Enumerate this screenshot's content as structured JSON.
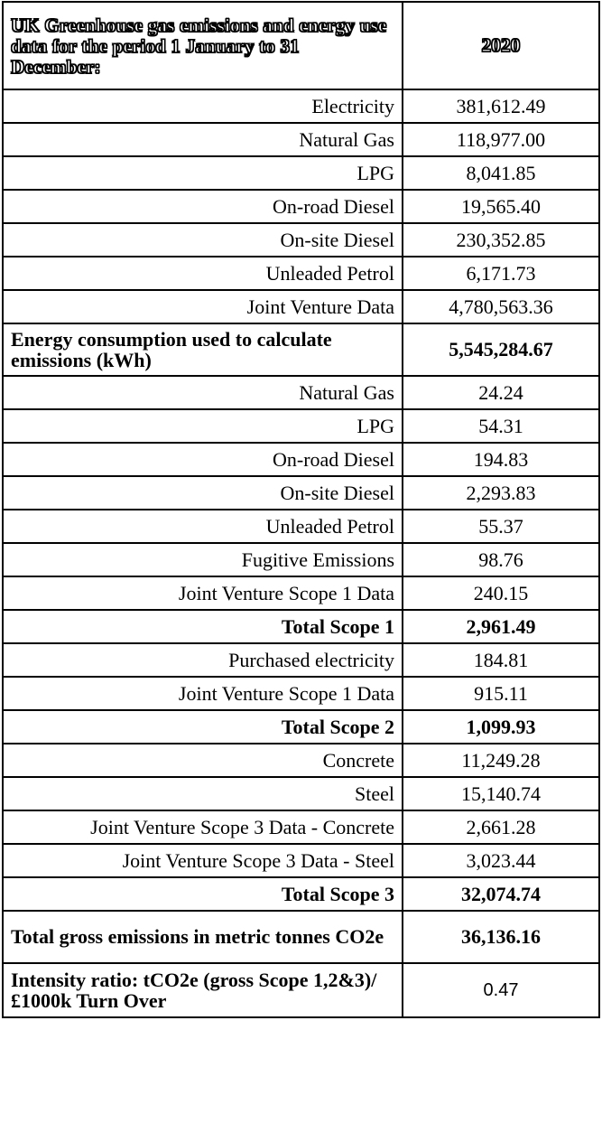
{
  "header": {
    "title": "UK Greenhouse gas emissions and energy use data for the period 1 January to 31 December:",
    "year": "2020"
  },
  "rows": [
    {
      "label": "Electricity",
      "value": "381,612.49"
    },
    {
      "label": "Natural Gas",
      "value": "118,977.00"
    },
    {
      "label": "LPG",
      "value": "8,041.85"
    },
    {
      "label": "On-road Diesel",
      "value": "19,565.40"
    },
    {
      "label": "On-site Diesel",
      "value": "230,352.85"
    },
    {
      "label": "Unleaded Petrol",
      "value": "6,171.73"
    },
    {
      "label": "Joint Venture Data",
      "value": "4,780,563.36"
    },
    {
      "label": "Energy consumption used to calculate emissions (kWh)",
      "value": "5,545,284.67"
    },
    {
      "label": "Natural Gas",
      "value": "24.24"
    },
    {
      "label": "LPG",
      "value": "54.31"
    },
    {
      "label": "On-road Diesel",
      "value": "194.83"
    },
    {
      "label": "On-site Diesel",
      "value": "2,293.83"
    },
    {
      "label": "Unleaded Petrol",
      "value": "55.37"
    },
    {
      "label": "Fugitive Emissions",
      "value": "98.76"
    },
    {
      "label": "Joint Venture Scope 1 Data",
      "value": "240.15"
    },
    {
      "label": "Total Scope 1",
      "value": "2,961.49"
    },
    {
      "label": "Purchased electricity",
      "value": "184.81"
    },
    {
      "label": "Joint Venture Scope 1 Data",
      "value": "915.11"
    },
    {
      "label": "Total Scope 2",
      "value": "1,099.93"
    },
    {
      "label": "Concrete",
      "value": "11,249.28"
    },
    {
      "label": "Steel",
      "value": "15,140.74"
    },
    {
      "label": "Joint Venture Scope 3 Data - Concrete",
      "value": "2,661.28"
    },
    {
      "label": "Joint Venture Scope 3 Data - Steel",
      "value": "3,023.44"
    },
    {
      "label": "Total Scope 3",
      "value": "32,074.74"
    },
    {
      "label": "Total gross emissions in metric tonnes CO2e",
      "value": "36,136.16"
    },
    {
      "label": "Intensity ratio: tCO2e (gross Scope 1,2&3)/ £1000k Turn Over",
      "value": "0.47"
    }
  ]
}
